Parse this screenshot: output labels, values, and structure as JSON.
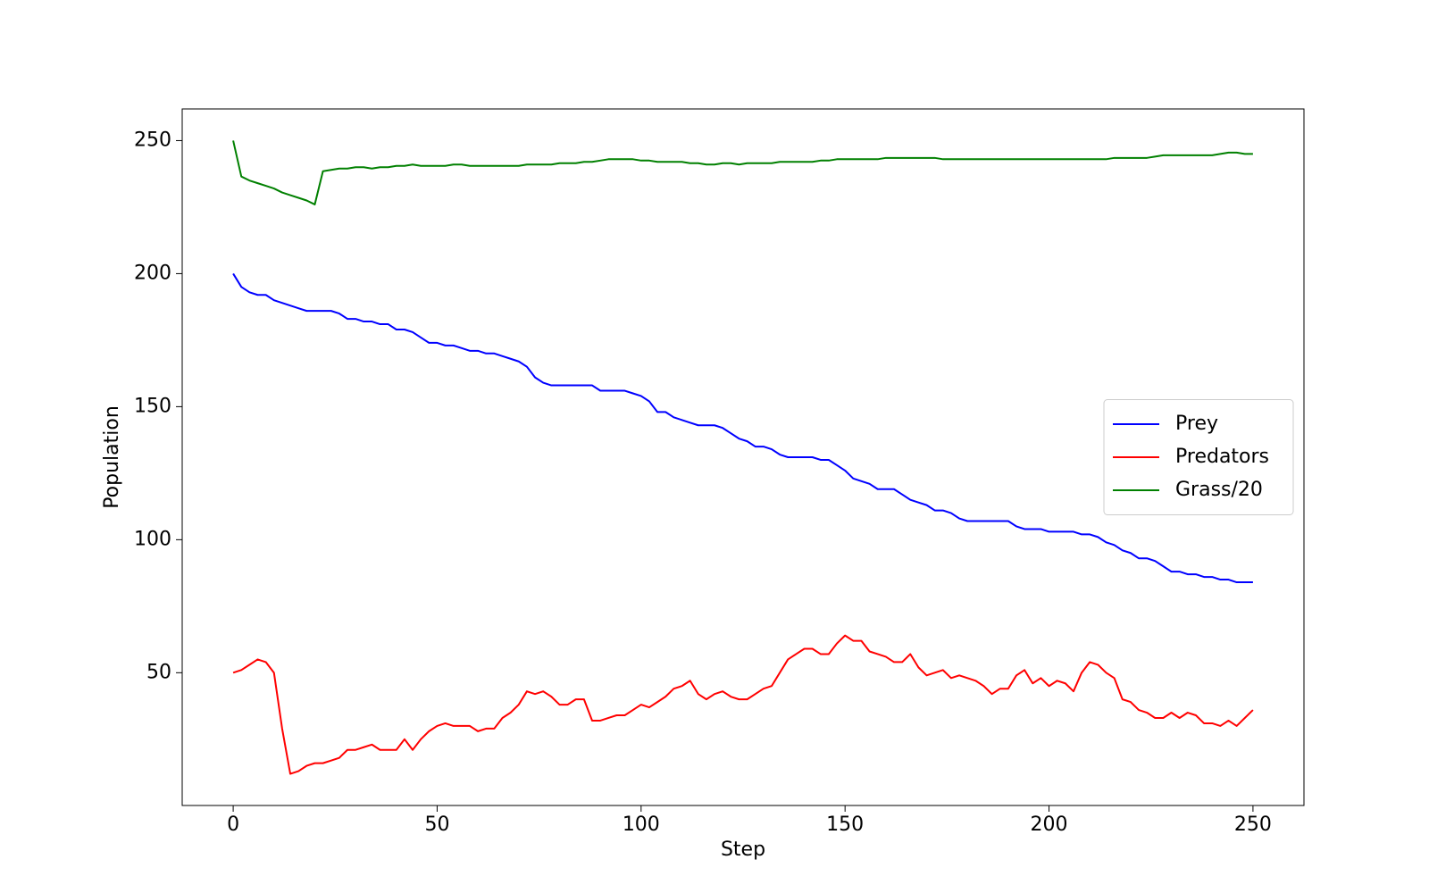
{
  "chart_data": {
    "type": "line",
    "x_label": "Step",
    "y_label": "Population",
    "x": [
      0,
      2,
      4,
      6,
      8,
      10,
      12,
      14,
      16,
      18,
      20,
      22,
      24,
      26,
      28,
      30,
      32,
      34,
      36,
      38,
      40,
      42,
      44,
      46,
      48,
      50,
      52,
      54,
      56,
      58,
      60,
      62,
      64,
      66,
      68,
      70,
      72,
      74,
      76,
      78,
      80,
      82,
      84,
      86,
      88,
      90,
      92,
      94,
      96,
      98,
      100,
      102,
      104,
      106,
      108,
      110,
      112,
      114,
      116,
      118,
      120,
      122,
      124,
      126,
      128,
      130,
      132,
      134,
      136,
      138,
      140,
      142,
      144,
      146,
      148,
      150,
      152,
      154,
      156,
      158,
      160,
      162,
      164,
      166,
      168,
      170,
      172,
      174,
      176,
      178,
      180,
      182,
      184,
      186,
      188,
      190,
      192,
      194,
      196,
      198,
      200,
      202,
      204,
      206,
      208,
      210,
      212,
      214,
      216,
      218,
      220,
      222,
      224,
      226,
      228,
      230,
      232,
      234,
      236,
      238,
      240,
      242,
      244,
      246,
      248,
      250
    ],
    "series": [
      {
        "name": "Prey",
        "color": "#0000ff",
        "values": [
          200,
          195,
          193,
          192,
          192,
          190,
          189,
          188,
          187,
          186,
          186,
          186,
          186,
          185,
          183,
          183,
          182,
          182,
          181,
          181,
          179,
          179,
          178,
          176,
          174,
          174,
          173,
          173,
          172,
          171,
          171,
          170,
          170,
          169,
          168,
          167,
          165,
          161,
          159,
          158,
          158,
          158,
          158,
          158,
          158,
          156,
          156,
          156,
          156,
          155,
          154,
          152,
          148,
          148,
          146,
          145,
          144,
          143,
          143,
          143,
          142,
          140,
          138,
          137,
          135,
          135,
          134,
          132,
          131,
          131,
          131,
          131,
          130,
          130,
          128,
          126,
          123,
          122,
          121,
          119,
          119,
          119,
          117,
          115,
          114,
          113,
          111,
          111,
          110,
          108,
          107,
          107,
          107,
          107,
          107,
          107,
          105,
          104,
          104,
          104,
          103,
          103,
          103,
          103,
          102,
          102,
          101,
          99,
          98,
          96,
          95,
          93,
          93,
          92,
          90,
          88,
          88,
          87,
          87,
          86,
          86,
          85,
          85,
          84,
          84,
          84
        ]
      },
      {
        "name": "Predators",
        "color": "#ff0000",
        "values": [
          50,
          51,
          53,
          55,
          54,
          50,
          29,
          12,
          13,
          15,
          16,
          16,
          17,
          18,
          21,
          21,
          22,
          23,
          21,
          21,
          21,
          25,
          21,
          25,
          28,
          30,
          31,
          30,
          30,
          30,
          28,
          29,
          29,
          33,
          35,
          38,
          43,
          42,
          43,
          41,
          38,
          38,
          40,
          40,
          32,
          32,
          33,
          34,
          34,
          36,
          38,
          37,
          39,
          41,
          44,
          45,
          47,
          42,
          40,
          42,
          43,
          41,
          40,
          40,
          42,
          44,
          45,
          50,
          55,
          57,
          59,
          59,
          57,
          57,
          61,
          64,
          62,
          62,
          58,
          57,
          56,
          54,
          54,
          57,
          52,
          49,
          50,
          51,
          48,
          49,
          48,
          47,
          45,
          42,
          44,
          44,
          49,
          51,
          46,
          48,
          45,
          47,
          46,
          43,
          50,
          54,
          53,
          50,
          48,
          40,
          39,
          36,
          35,
          33,
          33,
          35,
          33,
          35,
          34,
          31,
          31,
          30,
          32,
          30,
          33,
          36
        ]
      },
      {
        "name": "Grass/20",
        "color": "#008000",
        "values": [
          250,
          236.5,
          235,
          234,
          233,
          232,
          230.5,
          229.5,
          228.5,
          227.5,
          226,
          238.5,
          239,
          239.5,
          239.5,
          240,
          240,
          239.5,
          240,
          240,
          240.5,
          240.5,
          241,
          240.5,
          240.5,
          240.5,
          240.5,
          241,
          241,
          240.5,
          240.5,
          240.5,
          240.5,
          240.5,
          240.5,
          240.5,
          241,
          241,
          241,
          241,
          241.5,
          241.5,
          241.5,
          242,
          242,
          242.5,
          243,
          243,
          243,
          243,
          242.5,
          242.5,
          242,
          242,
          242,
          242,
          241.5,
          241.5,
          241,
          241,
          241.5,
          241.5,
          241,
          241.5,
          241.5,
          241.5,
          241.5,
          242,
          242,
          242,
          242,
          242,
          242.5,
          242.5,
          243,
          243,
          243,
          243,
          243,
          243,
          243.5,
          243.5,
          243.5,
          243.5,
          243.5,
          243.5,
          243.5,
          243,
          243,
          243,
          243,
          243,
          243,
          243,
          243,
          243,
          243,
          243,
          243,
          243,
          243,
          243,
          243,
          243,
          243,
          243,
          243,
          243,
          243.5,
          243.5,
          243.5,
          243.5,
          243.5,
          244,
          244.5,
          244.5,
          244.5,
          244.5,
          244.5,
          244.5,
          244.5,
          245,
          245.5,
          245.5,
          245,
          245
        ]
      }
    ],
    "xlim": [
      -12.5,
      262.5
    ],
    "ylim": [
      0.1,
      261.9
    ],
    "xticks": [
      0,
      50,
      100,
      150,
      200,
      250
    ],
    "yticks": [
      50,
      100,
      150,
      200,
      250
    ],
    "legend": "center right"
  }
}
